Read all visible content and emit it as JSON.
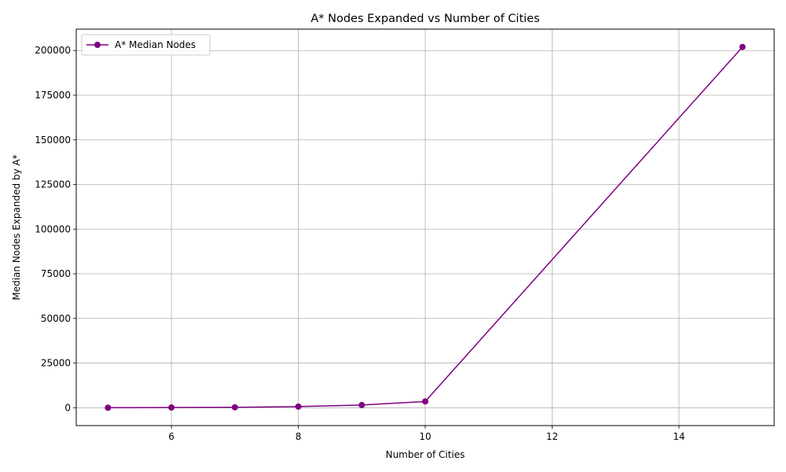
{
  "chart_data": {
    "type": "line",
    "title": "A* Nodes Expanded vs Number of Cities",
    "xlabel": "Number of Cities",
    "ylabel": "Median Nodes Expanded by A*",
    "xlim": [
      4.5,
      15.5
    ],
    "ylim": [
      -10000,
      212000
    ],
    "xticks": [
      6,
      8,
      10,
      12,
      14
    ],
    "yticks": [
      0,
      25000,
      50000,
      75000,
      100000,
      125000,
      150000,
      175000,
      200000
    ],
    "grid": true,
    "legend_position": "upper-left",
    "series": [
      {
        "name": "A* Median Nodes",
        "color": "#800080",
        "marker": "circle",
        "x": [
          5,
          6,
          7,
          8,
          9,
          10,
          15
        ],
        "y": [
          25,
          110,
          260,
          650,
          1500,
          3500,
          202000
        ]
      }
    ]
  }
}
